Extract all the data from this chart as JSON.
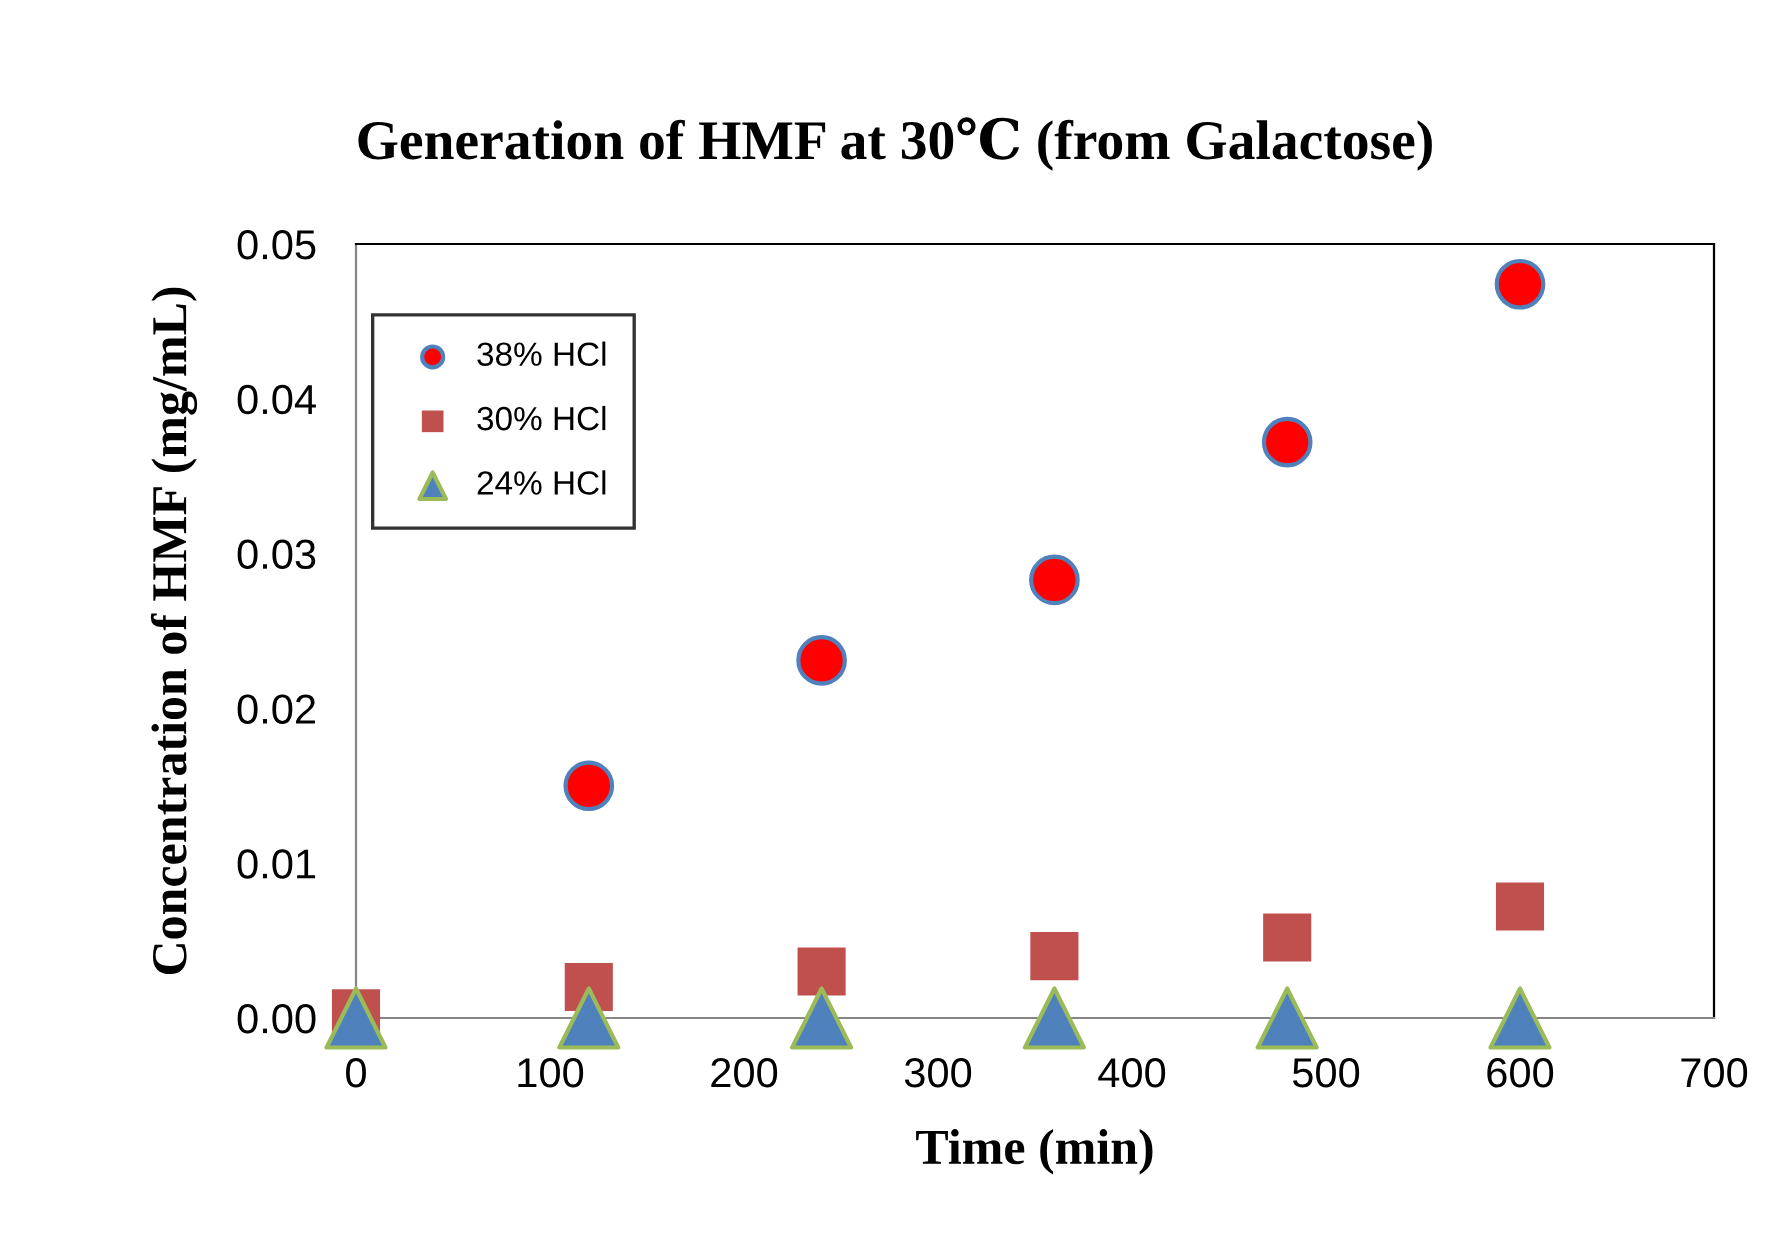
{
  "chart_data": {
    "type": "scatter",
    "title": "Generation of HMF at 30℃ (from Galactose)",
    "xlabel": "Time (min)",
    "ylabel": "Concentration of HMF (mg/mL)",
    "x": [
      0,
      120,
      240,
      360,
      480,
      600
    ],
    "series": [
      {
        "name": "38% HCl",
        "color": "#ff0000",
        "marker": "circle",
        "values": [
          null,
          0.015,
          0.0231,
          0.0283,
          0.0372,
          0.0474
        ]
      },
      {
        "name": "30% HCl",
        "color": "#c0504d",
        "marker": "square",
        "values": [
          0.0003,
          0.002,
          0.003,
          0.004,
          0.0052,
          0.0072
        ]
      },
      {
        "name": "24% HCl",
        "color": "#4f81bd",
        "marker": "triangle",
        "values": [
          0,
          0,
          0,
          0,
          0,
          0
        ]
      }
    ],
    "xlim": [
      0,
      700
    ],
    "xticks": [
      0,
      100,
      200,
      300,
      400,
      500,
      600,
      700
    ],
    "ylim": [
      0,
      0.05
    ],
    "yticks": [
      {
        "value": 0,
        "label": "0.00"
      },
      {
        "value": 0.01,
        "label": "0.01"
      },
      {
        "value": 0.02,
        "label": "0.02"
      },
      {
        "value": 0.03,
        "label": "0.03"
      },
      {
        "value": 0.04,
        "label": "0.04"
      },
      {
        "value": 0.05,
        "label": "0.05"
      }
    ],
    "grid": false,
    "legend": "top left"
  }
}
